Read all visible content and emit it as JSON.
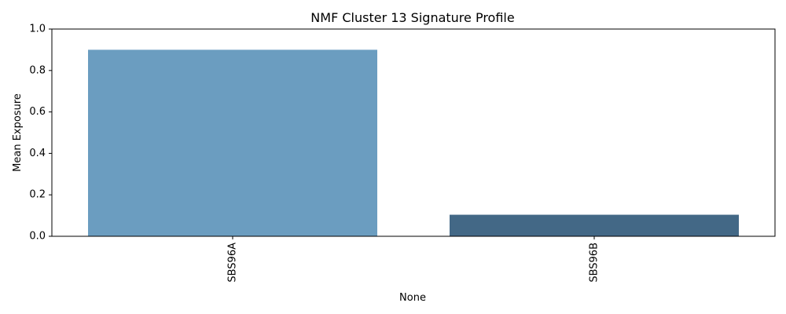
{
  "chart_data": {
    "type": "bar",
    "title": "NMF Cluster 13 Signature Profile",
    "xlabel": "None",
    "ylabel": "Mean Exposure",
    "categories": [
      "SBS96A",
      "SBS96B"
    ],
    "values": [
      0.9,
      0.104
    ],
    "colors": [
      "#6b9dc0",
      "#436886"
    ],
    "ylim": [
      0,
      1.0
    ],
    "yticks": [
      "0.0",
      "0.2",
      "0.4",
      "0.6",
      "0.8",
      "1.0"
    ],
    "grid": false,
    "legend": "none"
  }
}
